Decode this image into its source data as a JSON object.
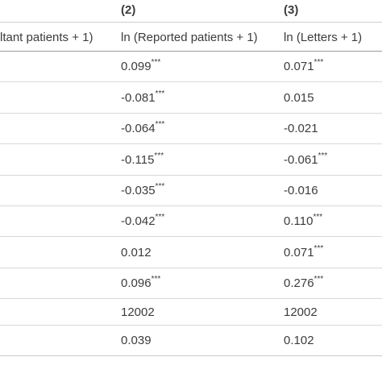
{
  "header": {
    "col2_number": "(2)",
    "col3_number": "(3)",
    "col1_label": "ltant patients + 1)",
    "col2_label": "ln (Reported patients + 1)",
    "col3_label": "ln (Letters + 1)"
  },
  "rows": [
    {
      "b": "0.099",
      "b_stars": "***",
      "c": "0.071",
      "c_stars": "***"
    },
    {
      "b": "-0.081",
      "b_stars": "***",
      "c": "0.015",
      "c_stars": ""
    },
    {
      "b": "-0.064",
      "b_stars": "***",
      "c": "-0.021",
      "c_stars": ""
    },
    {
      "b": "-0.115",
      "b_stars": "***",
      "c": "-0.061",
      "c_stars": "***"
    },
    {
      "b": "-0.035",
      "b_stars": "***",
      "c": "-0.016",
      "c_stars": ""
    },
    {
      "b": "-0.042",
      "b_stars": "***",
      "c": "0.110",
      "c_stars": "***"
    },
    {
      "b": "0.012",
      "b_stars": "",
      "c": "0.071",
      "c_stars": "***"
    },
    {
      "b": "0.096",
      "b_stars": "***",
      "c": "0.276",
      "c_stars": "***"
    },
    {
      "b": "12002",
      "b_stars": "",
      "c": "12002",
      "c_stars": ""
    },
    {
      "b": "0.039",
      "b_stars": "",
      "c": "0.102",
      "c_stars": ""
    }
  ]
}
